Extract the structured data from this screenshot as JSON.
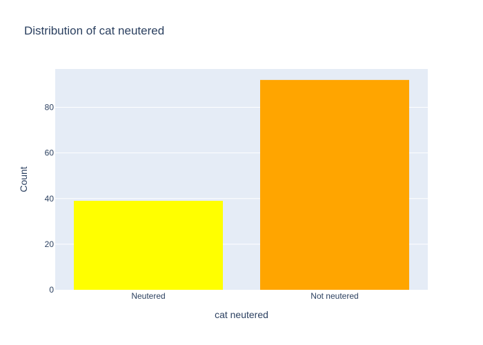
{
  "chart_data": {
    "type": "bar",
    "title": "Distribution of cat neutered",
    "xlabel": "cat neutered",
    "ylabel": "Count",
    "categories": [
      "Neutered",
      "Not neutered"
    ],
    "values": [
      39,
      92
    ],
    "colors": [
      "#FFFF00",
      "#FFA500"
    ],
    "ylim": [
      0,
      96.8
    ],
    "yticks": [
      0,
      20,
      40,
      60,
      80
    ],
    "grid": true,
    "legend": "none",
    "background_color": "#E5ECF6"
  }
}
